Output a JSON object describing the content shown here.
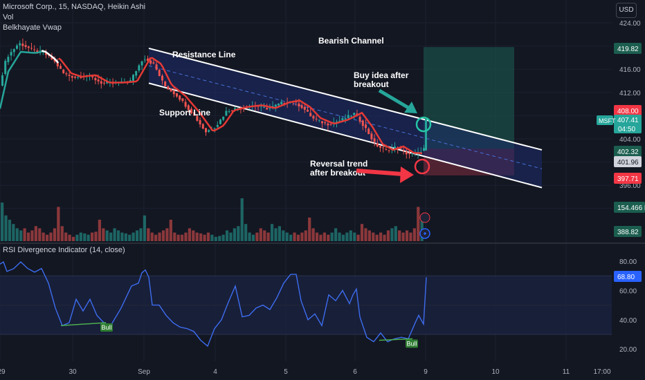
{
  "header": {
    "title": "Microsoft Corp., 15, NASDAQ, Heikin Ashi",
    "indicator_vol": "Vol",
    "indicator_vwap": "Belkhayate Vwap",
    "currency": "USD"
  },
  "rsi_panel": {
    "title": "RSI Divergence Indicator (14, close)"
  },
  "colors": {
    "background": "#131722",
    "up": "#26a69a",
    "down": "#ef5350",
    "rsi_line": "#3d6df0",
    "channel_fill": "#1e2b6b",
    "target_zone": "#1c5f52",
    "stop_zone": "#6b2a3a",
    "vwap_red": "#e53935",
    "vwap_white": "#ffffff"
  },
  "chart_data": [
    {
      "type": "candlestick",
      "title": "Microsoft Corp., 15, NASDAQ, Heikin Ashi",
      "yaxis_ticks": [
        424.0,
        420.0,
        416.0,
        412.0,
        408.0,
        404.0,
        400.0,
        396.0,
        392.0,
        388.0
      ],
      "ylim": [
        386.5,
        426.5
      ],
      "xaxis_ticks": [
        "29",
        "30",
        "Sep",
        "4",
        "5",
        "6",
        "9",
        "10",
        "11",
        "17:00"
      ],
      "price_path": [
        [
          0,
          412.2
        ],
        [
          12,
          418
        ],
        [
          30,
          420.5
        ],
        [
          50,
          419.3
        ],
        [
          66,
          418.8
        ],
        [
          80,
          417.5
        ],
        [
          95,
          415.2
        ],
        [
          110,
          414.6
        ],
        [
          130,
          414.9
        ],
        [
          150,
          413.6
        ],
        [
          170,
          413.6
        ],
        [
          190,
          413.8
        ],
        [
          210,
          418
        ],
        [
          225,
          416.8
        ],
        [
          240,
          413.2
        ],
        [
          260,
          411.3
        ],
        [
          280,
          408.5
        ],
        [
          300,
          405.2
        ],
        [
          315,
          406.2
        ],
        [
          330,
          408.8
        ],
        [
          350,
          409.4
        ],
        [
          370,
          409.7
        ],
        [
          390,
          409.2
        ],
        [
          410,
          410.2
        ],
        [
          425,
          410.5
        ],
        [
          440,
          409.4
        ],
        [
          455,
          407.5
        ],
        [
          475,
          406.5
        ],
        [
          495,
          407.2
        ],
        [
          515,
          408.4
        ],
        [
          530,
          406
        ],
        [
          545,
          403
        ],
        [
          560,
          402
        ],
        [
          575,
          402.6
        ],
        [
          590,
          401.5
        ],
        [
          605,
          401.4
        ],
        [
          615,
          402.3
        ]
      ],
      "last_bar_close": 407.41,
      "price_labels": {
        "target": "419.82",
        "last_red": "408.00",
        "symbol": "MSFT",
        "last": "407.41",
        "countdown": "04:50",
        "entry": "402.32",
        "current_grey": "401.96",
        "stop": "397.71",
        "volume": "154.466 K",
        "vol_ma": "388.82"
      },
      "annotations": [
        "Resistance Line",
        "Support Line",
        "Bearish Channel",
        "Buy idea after",
        "breakout",
        "Reversal trend",
        "after breakout"
      ]
    },
    {
      "type": "line",
      "title": "RSI Divergence Indicator (14, close)",
      "yaxis_ticks": [
        80.0,
        60.0,
        40.0,
        20.0
      ],
      "ylim": [
        16.5,
        84
      ],
      "levels": [
        70,
        30
      ],
      "last_value": "68.80",
      "divergence_labels": [
        "Bull",
        "Bull"
      ],
      "x": [
        0,
        5,
        10,
        20,
        30,
        40,
        50,
        60,
        70,
        80,
        90,
        100,
        110,
        120,
        130,
        140,
        150,
        160,
        175,
        190,
        200,
        205,
        210,
        215,
        220,
        230,
        240,
        250,
        260,
        270,
        280,
        290,
        300,
        310,
        320,
        330,
        340,
        350,
        360,
        370,
        380,
        390,
        400,
        410,
        420,
        428,
        435,
        445,
        455,
        465,
        475,
        485,
        495,
        505,
        510,
        515,
        520,
        530,
        540,
        550,
        560,
        570,
        580,
        590,
        600,
        605,
        612,
        616
      ],
      "values": [
        78,
        79.5,
        73,
        75,
        79.5,
        75,
        72.5,
        75,
        65,
        48,
        36,
        38,
        54,
        46,
        54,
        43,
        38,
        36,
        48,
        63,
        65,
        72,
        74,
        69,
        50,
        50,
        43,
        38,
        35,
        34,
        32,
        26,
        22,
        34,
        40,
        52,
        63,
        42,
        43,
        48,
        50,
        47,
        55,
        65,
        71,
        71,
        53,
        40,
        44,
        36,
        57,
        53,
        60,
        51,
        57,
        61,
        42,
        28,
        25,
        31,
        25,
        27,
        28,
        27,
        38,
        43,
        37,
        69
      ]
    },
    {
      "type": "bar",
      "title": "Vol",
      "values_relative": [
        0.9,
        0.6,
        0.5,
        0.4,
        0.3,
        0.25,
        0.3,
        0.2,
        0.25,
        0.35,
        0.3,
        0.2,
        0.15,
        0.2,
        0.3,
        0.8,
        0.35,
        0.2,
        0.15,
        0.1,
        0.15,
        0.2,
        0.18,
        0.15,
        0.2,
        0.22,
        0.5,
        0.3,
        0.25,
        0.2,
        0.3,
        0.25,
        0.2,
        0.18,
        0.15,
        0.2,
        0.25,
        0.3,
        0.6,
        0.3,
        0.2,
        0.15,
        0.2,
        0.25,
        0.3,
        0.5,
        0.2,
        0.15,
        0.15,
        0.2,
        0.3,
        0.25,
        0.2,
        0.18,
        0.15,
        0.2,
        0.15,
        0.1,
        0.12,
        0.15,
        0.25,
        0.2,
        0.3,
        0.35,
        1.0,
        0.4,
        0.2,
        0.15,
        0.2,
        0.3,
        0.25,
        0.2,
        0.4,
        0.3,
        0.35,
        0.25,
        0.2,
        0.15,
        0.2,
        0.15,
        0.2,
        0.25,
        0.55,
        0.3,
        0.2,
        0.15,
        0.2,
        0.15,
        0.2,
        0.3,
        0.2,
        0.15,
        0.2,
        0.25,
        0.2,
        0.15,
        0.4,
        0.3,
        0.25,
        0.2,
        0.15,
        0.2,
        0.15,
        0.25,
        0.3,
        0.35,
        0.25,
        0.2,
        0.25,
        0.2,
        0.3,
        0.8,
        0.6
      ]
    }
  ]
}
